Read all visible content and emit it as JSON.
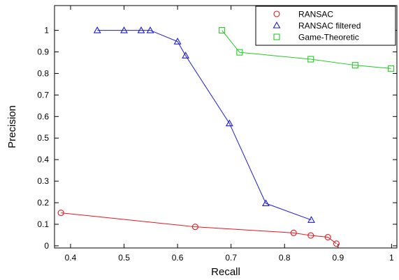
{
  "chart_data": {
    "type": "line",
    "xlabel": "Recall",
    "ylabel": "Precision",
    "xlim": [
      0.37,
      1.01
    ],
    "ylim": [
      -0.01,
      1.115
    ],
    "xticks": [
      0.4,
      0.5,
      0.6,
      0.7,
      0.8,
      0.9,
      1
    ],
    "xtick_labels": [
      "0.4",
      "0.5",
      "0.6",
      "0.7",
      "0.8",
      "0.9",
      "1"
    ],
    "yticks": [
      0,
      0.1,
      0.2,
      0.3,
      0.4,
      0.5,
      0.6,
      0.7,
      0.8,
      0.9,
      1
    ],
    "ytick_labels": [
      "0",
      "0.1",
      "0.2",
      "0.3",
      "0.4",
      "0.5",
      "0.6",
      "0.7",
      "0.8",
      "0.9",
      "1"
    ],
    "grid": false,
    "legend_position": "top-right",
    "series": [
      {
        "name": "RANSAC",
        "color": "#e8161b",
        "marker": "circle",
        "x": [
          0.382,
          0.633,
          0.817,
          0.849,
          0.881,
          0.897
        ],
        "y": [
          0.153,
          0.088,
          0.06,
          0.048,
          0.04,
          0.01
        ]
      },
      {
        "name": "RANSAC filtered",
        "color": "#1a1ad6",
        "marker": "triangle",
        "x": [
          0.45,
          0.5,
          0.532,
          0.549,
          0.6,
          0.615,
          0.697,
          0.765,
          0.85
        ],
        "y": [
          1.0,
          1.0,
          1.0,
          1.0,
          0.948,
          0.883,
          0.568,
          0.197,
          0.12
        ]
      },
      {
        "name": "Game-Theoretic",
        "color": "#22cc22",
        "marker": "square",
        "x": [
          0.683,
          0.716,
          0.849,
          0.932,
          0.999
        ],
        "y": [
          1.0,
          0.898,
          0.866,
          0.838,
          0.823
        ]
      }
    ]
  }
}
